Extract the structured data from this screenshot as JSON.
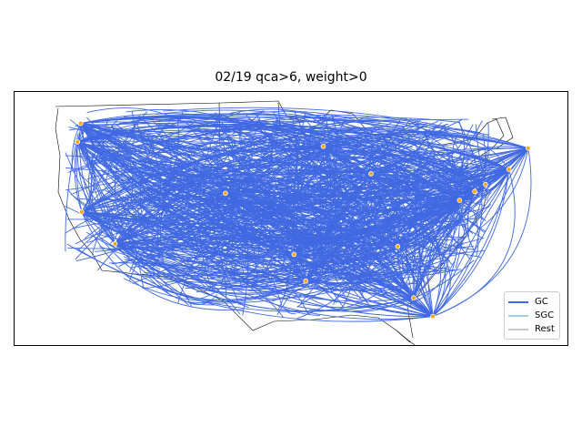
{
  "title": "02/19 qca>6, weight>0",
  "colors": {
    "gc": "#4169E1",
    "sgc": "#A6CEE3",
    "rest": "#C8C8C8",
    "node": "#FFA500",
    "boundary": "#000000"
  },
  "legend": {
    "items": [
      {
        "label": "GC",
        "color": "#4169E1"
      },
      {
        "label": "SGC",
        "color": "#A6CEE3"
      },
      {
        "label": "Rest",
        "color": "#C8C8C8"
      }
    ]
  },
  "map": {
    "projection": "Lambert-like US view",
    "hubs": [
      {
        "name": "seattle",
        "lon": -122.3,
        "lat": 47.6
      },
      {
        "name": "portland",
        "lon": -122.7,
        "lat": 45.5
      },
      {
        "name": "bay-area",
        "lon": -122.2,
        "lat": 37.6
      },
      {
        "name": "los-angeles",
        "lon": -118.2,
        "lat": 34.0
      },
      {
        "name": "minneapolis",
        "lon": -93.3,
        "lat": 45.0
      },
      {
        "name": "chicago",
        "lon": -87.6,
        "lat": 41.9
      },
      {
        "name": "boston",
        "lon": -71.1,
        "lat": 42.4
      },
      {
        "name": "maine",
        "lon": -68.8,
        "lat": 44.8
      },
      {
        "name": "new-york",
        "lon": -73.9,
        "lat": 40.7
      },
      {
        "name": "philadelphia",
        "lon": -75.2,
        "lat": 39.9
      },
      {
        "name": "washington",
        "lon": -77.0,
        "lat": 38.9
      },
      {
        "name": "atlanta",
        "lon": -84.4,
        "lat": 33.7
      },
      {
        "name": "dallas",
        "lon": -96.8,
        "lat": 32.8
      },
      {
        "name": "houston",
        "lon": -95.4,
        "lat": 29.8
      },
      {
        "name": "denver",
        "lon": -105.0,
        "lat": 39.7
      },
      {
        "name": "miami",
        "lon": -80.2,
        "lat": 25.8
      },
      {
        "name": "tampa",
        "lon": -82.5,
        "lat": 27.9
      }
    ]
  }
}
